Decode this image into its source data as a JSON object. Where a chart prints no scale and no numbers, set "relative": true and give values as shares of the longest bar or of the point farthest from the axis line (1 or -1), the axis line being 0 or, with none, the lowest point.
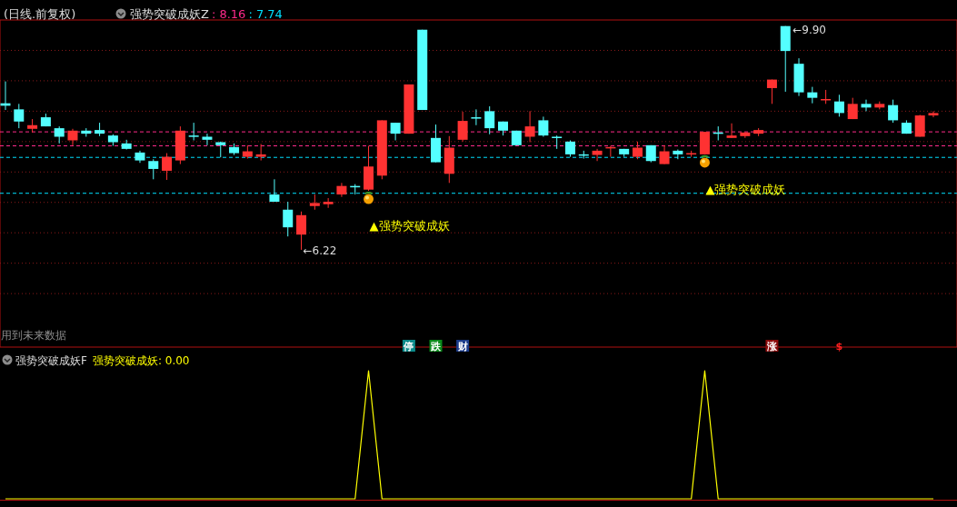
{
  "chart_data": [
    {
      "type": "candlestick",
      "title": "(日线.前复权)",
      "subtitle": "强势突破成妖Z",
      "categories": [
        null,
        null,
        null,
        null,
        null,
        null,
        null,
        null,
        null,
        null,
        null,
        null,
        null,
        null,
        null,
        null,
        null,
        null,
        null,
        null,
        null,
        null,
        null,
        null,
        null,
        null,
        null,
        null,
        null,
        null,
        null,
        null,
        null,
        null,
        null,
        null,
        null,
        null,
        null,
        null,
        null,
        null,
        null,
        null,
        null,
        null,
        null,
        null,
        null,
        null,
        null,
        null,
        null,
        null,
        null,
        null,
        null,
        null,
        null,
        null,
        null,
        null,
        null,
        null,
        null,
        null,
        null,
        null,
        null,
        null
      ],
      "ohlc": [
        [
          8.63,
          8.99,
          8.52,
          8.59
        ],
        [
          8.53,
          8.62,
          8.22,
          8.33
        ],
        [
          8.21,
          8.37,
          8.15,
          8.27
        ],
        [
          8.4,
          8.46,
          8.25,
          8.25
        ],
        [
          8.22,
          8.25,
          7.97,
          8.08
        ],
        [
          8.02,
          8.21,
          7.94,
          8.18
        ],
        [
          8.18,
          8.22,
          8.08,
          8.13
        ],
        [
          8.19,
          8.31,
          8.09,
          8.13
        ],
        [
          8.1,
          8.12,
          7.93,
          7.99
        ],
        [
          7.97,
          8.03,
          7.87,
          7.88
        ],
        [
          7.82,
          7.85,
          7.65,
          7.69
        ],
        [
          7.68,
          7.71,
          7.38,
          7.55
        ],
        [
          7.52,
          7.81,
          7.37,
          7.75
        ],
        [
          7.69,
          8.25,
          7.63,
          8.18
        ],
        [
          8.1,
          8.31,
          8.02,
          8.09
        ],
        [
          8.08,
          8.13,
          7.94,
          8.03
        ],
        [
          7.99,
          8.0,
          7.74,
          7.94
        ],
        [
          7.91,
          7.97,
          7.78,
          7.81
        ],
        [
          7.75,
          7.94,
          7.72,
          7.84
        ],
        [
          7.75,
          7.96,
          7.69,
          7.79
        ],
        [
          7.13,
          7.38,
          7.01,
          7.01
        ],
        [
          6.88,
          7.01,
          6.44,
          6.59
        ],
        [
          6.47,
          6.85,
          6.22,
          6.79
        ],
        [
          6.94,
          7.13,
          6.88,
          6.99
        ],
        [
          6.97,
          7.07,
          6.91,
          7.01
        ],
        [
          7.13,
          7.32,
          7.09,
          7.27
        ],
        [
          7.27,
          7.3,
          7.13,
          7.26
        ],
        [
          7.21,
          7.93,
          7.19,
          7.59
        ],
        [
          7.44,
          8.35,
          7.38,
          8.35
        ],
        [
          8.31,
          8.31,
          8.02,
          8.13
        ],
        [
          8.13,
          8.94,
          8.13,
          8.94
        ],
        [
          9.84,
          9.84,
          8.52,
          8.52
        ],
        [
          8.06,
          8.28,
          7.66,
          7.66
        ],
        [
          7.47,
          8.09,
          7.32,
          7.9
        ],
        [
          8.03,
          8.49,
          8.0,
          8.34
        ],
        [
          8.4,
          8.53,
          8.27,
          8.39
        ],
        [
          8.5,
          8.58,
          8.12,
          8.22
        ],
        [
          8.33,
          8.33,
          8.1,
          8.18
        ],
        [
          8.18,
          8.18,
          7.94,
          7.94
        ],
        [
          8.08,
          8.5,
          7.99,
          8.25
        ],
        [
          8.35,
          8.41,
          8.08,
          8.1
        ],
        [
          8.08,
          8.1,
          7.88,
          8.07
        ],
        [
          8.0,
          8.02,
          7.75,
          7.79
        ],
        [
          7.79,
          7.85,
          7.72,
          7.78
        ],
        [
          7.78,
          7.88,
          7.68,
          7.85
        ],
        [
          7.9,
          7.93,
          7.75,
          7.91
        ],
        [
          7.88,
          7.88,
          7.75,
          7.79
        ],
        [
          7.75,
          8.0,
          7.71,
          7.9
        ],
        [
          7.94,
          7.94,
          7.66,
          7.68
        ],
        [
          7.63,
          7.94,
          7.63,
          7.84
        ],
        [
          7.85,
          7.87,
          7.71,
          7.79
        ],
        [
          7.8,
          7.85,
          7.75,
          7.81
        ],
        [
          7.79,
          8.16,
          7.79,
          8.16
        ],
        [
          8.15,
          8.25,
          8.02,
          8.14
        ],
        [
          8.06,
          8.3,
          8.06,
          8.1
        ],
        [
          8.09,
          8.15,
          8.06,
          8.15
        ],
        [
          8.13,
          8.22,
          8.09,
          8.19
        ],
        [
          8.88,
          9.02,
          8.62,
          9.02
        ],
        [
          9.9,
          9.9,
          8.82,
          9.49
        ],
        [
          9.28,
          9.37,
          8.75,
          8.81
        ],
        [
          8.81,
          8.9,
          8.63,
          8.72
        ],
        [
          8.69,
          8.85,
          8.62,
          8.7
        ],
        [
          8.66,
          8.77,
          8.41,
          8.47
        ],
        [
          8.37,
          8.72,
          8.37,
          8.62
        ],
        [
          8.62,
          8.69,
          8.5,
          8.56
        ],
        [
          8.56,
          8.66,
          8.53,
          8.62
        ],
        [
          8.6,
          8.69,
          8.31,
          8.35
        ],
        [
          8.31,
          8.35,
          8.13,
          8.13
        ],
        [
          8.08,
          8.44,
          8.08,
          8.43
        ],
        [
          8.43,
          8.5,
          8.4,
          8.47
        ]
      ],
      "ylim": [
        4.62,
        10.0
      ],
      "yticks": [
        {
          "value": 5.5,
          "label": null
        },
        {
          "value": 6.0,
          "label": null
        },
        {
          "value": 6.5,
          "label": null
        },
        {
          "value": 7.0,
          "label": null
        },
        {
          "value": 7.5,
          "label": null
        },
        {
          "value": 8.0,
          "label": null
        },
        {
          "value": 8.5,
          "label": null
        },
        {
          "value": 9.0,
          "label": null
        },
        {
          "value": 9.5,
          "label": null
        }
      ],
      "grid": "y",
      "ref_lines": [
        {
          "axis": "y",
          "value": 7.93,
          "color": "#ff2a8a",
          "line_style": "dashed"
        },
        {
          "axis": "y",
          "value": 7.15,
          "color": "#00e0ff",
          "line_style": "dashed"
        },
        {
          "axis": "y",
          "value": 8.16,
          "label": ": 8.16",
          "color": "#ff2a8a",
          "line_style": "dashed"
        },
        {
          "axis": "y",
          "value": 7.74,
          "label": ": 7.74",
          "color": "#00e0ff",
          "line_style": "dashed"
        }
      ],
      "annotations": [
        {
          "text": "▲强势突破成妖",
          "y": 7.19
        },
        {
          "text": "▲强势突破成妖",
          "y": 7.79
        },
        "←6.22",
        "←9.90",
        "用到未来数据",
        "停",
        "跌",
        "财",
        "涨",
        "$"
      ]
    },
    {
      "type": "line",
      "title": "强势突破成妖F",
      "relative": true,
      "categories": [
        null,
        null,
        null,
        null,
        null,
        null,
        null,
        null,
        null,
        null,
        null,
        null,
        null,
        null,
        null,
        null,
        null,
        null,
        null,
        null,
        null,
        null,
        null,
        null,
        null,
        null,
        null,
        null,
        null,
        null,
        null,
        null,
        null,
        null,
        null,
        null,
        null,
        null,
        null,
        null,
        null,
        null,
        null,
        null,
        null,
        null,
        null,
        null,
        null,
        null,
        null,
        null,
        null,
        null,
        null,
        null,
        null,
        null,
        null,
        null,
        null,
        null,
        null,
        null,
        null,
        null,
        null,
        null,
        null,
        null
      ],
      "series": [
        {
          "name": "强势突破成妖",
          "color": "#ffff00",
          "values": [
            0,
            0,
            0,
            0,
            0,
            0,
            0,
            0,
            0,
            0,
            0,
            0,
            0,
            0,
            0,
            0,
            0,
            0,
            0,
            0,
            0,
            0,
            0,
            0,
            0,
            0,
            0,
            1,
            0,
            0,
            0,
            0,
            0,
            0,
            0,
            0,
            0,
            0,
            0,
            0,
            0,
            0,
            0,
            0,
            0,
            0,
            0,
            0,
            0,
            0,
            0,
            0,
            1,
            0,
            0,
            0,
            0,
            0,
            0,
            0,
            0,
            0,
            0,
            0,
            0,
            0,
            0,
            0,
            0,
            0
          ]
        }
      ],
      "annotations": [
        ": 0.00"
      ]
    }
  ]
}
